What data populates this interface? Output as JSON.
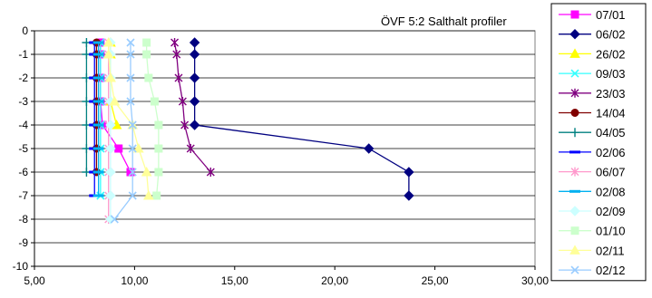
{
  "chart_data": {
    "type": "line",
    "title": "ÖVF 5:2 Salthalt profiler",
    "xlabel": "",
    "ylabel": "",
    "xlim": [
      5,
      30
    ],
    "ylim": [
      -10,
      0
    ],
    "x_ticks": [
      "5,00",
      "10,00",
      "15,00",
      "20,00",
      "25,00",
      "30,00"
    ],
    "y_ticks": [
      "0",
      "-1",
      "-2",
      "-3",
      "-4",
      "-5",
      "-6",
      "-7",
      "-8",
      "-9",
      "-10"
    ],
    "grid": "horizontal",
    "legend_position": "right",
    "series": [
      {
        "name": "07/01",
        "color": "#ff00ff",
        "marker": "square",
        "points": [
          [
            8.3,
            -0.5
          ],
          [
            8.3,
            -1
          ],
          [
            8.3,
            -2
          ],
          [
            8.3,
            -3
          ],
          [
            8.4,
            -4
          ],
          [
            9.2,
            -5
          ],
          [
            9.8,
            -6
          ]
        ]
      },
      {
        "name": "06/02",
        "color": "#000080",
        "marker": "diamond",
        "points": [
          [
            13.0,
            -0.5
          ],
          [
            13.0,
            -1
          ],
          [
            13.0,
            -2
          ],
          [
            13.0,
            -3
          ],
          [
            13.0,
            -4
          ],
          [
            21.7,
            -5
          ],
          [
            23.7,
            -6
          ],
          [
            23.7,
            -7
          ]
        ]
      },
      {
        "name": "26/02",
        "color": "#ffff00",
        "marker": "triangle",
        "points": [
          [
            8.8,
            -0.5
          ],
          [
            8.8,
            -1
          ],
          [
            8.8,
            -2
          ],
          [
            8.8,
            -3
          ],
          [
            9.1,
            -4
          ]
        ]
      },
      {
        "name": "09/03",
        "color": "#33ffff",
        "marker": "x",
        "points": [
          [
            8.3,
            -0.5
          ],
          [
            8.3,
            -1
          ],
          [
            8.3,
            -2
          ],
          [
            8.3,
            -3
          ],
          [
            8.3,
            -4
          ],
          [
            8.3,
            -5
          ],
          [
            8.3,
            -6
          ],
          [
            8.3,
            -7
          ]
        ]
      },
      {
        "name": "23/03",
        "color": "#800080",
        "marker": "star",
        "points": [
          [
            12.0,
            -0.5
          ],
          [
            12.1,
            -1
          ],
          [
            12.2,
            -2
          ],
          [
            12.4,
            -3
          ],
          [
            12.5,
            -4
          ],
          [
            12.8,
            -5
          ],
          [
            13.8,
            -6
          ]
        ]
      },
      {
        "name": "14/04",
        "color": "#800000",
        "marker": "circle",
        "points": [
          [
            8.1,
            -0.5
          ],
          [
            8.1,
            -1
          ],
          [
            8.1,
            -2
          ],
          [
            8.1,
            -3
          ],
          [
            8.1,
            -4
          ],
          [
            8.1,
            -5
          ],
          [
            8.1,
            -6
          ]
        ]
      },
      {
        "name": "04/05",
        "color": "#008080",
        "marker": "plus",
        "points": [
          [
            7.6,
            -0.5
          ],
          [
            7.6,
            -1
          ],
          [
            7.6,
            -2
          ],
          [
            7.6,
            -3
          ],
          [
            7.6,
            -4
          ],
          [
            7.6,
            -5
          ],
          [
            7.6,
            -6
          ]
        ]
      },
      {
        "name": "02/06",
        "color": "#0000ff",
        "marker": "dash",
        "points": [
          [
            8.0,
            -0.5
          ],
          [
            8.0,
            -1
          ],
          [
            8.0,
            -2
          ],
          [
            8.0,
            -3
          ],
          [
            8.0,
            -4
          ],
          [
            8.0,
            -5
          ],
          [
            8.0,
            -6
          ],
          [
            8.0,
            -7
          ]
        ]
      },
      {
        "name": "06/07",
        "color": "#ff99cc",
        "marker": "star",
        "points": [
          [
            8.7,
            -0.5
          ],
          [
            8.7,
            -1
          ],
          [
            8.7,
            -2
          ],
          [
            8.7,
            -3
          ],
          [
            8.7,
            -4
          ],
          [
            8.7,
            -5
          ],
          [
            8.7,
            -6
          ],
          [
            8.7,
            -7
          ],
          [
            8.7,
            -8
          ]
        ]
      },
      {
        "name": "02/08",
        "color": "#00b0f0",
        "marker": "dash",
        "points": [
          [
            8.2,
            -0.5
          ],
          [
            8.2,
            -1
          ],
          [
            8.2,
            -2
          ],
          [
            8.2,
            -3
          ],
          [
            8.2,
            -4
          ],
          [
            8.2,
            -5
          ],
          [
            8.2,
            -6
          ],
          [
            8.2,
            -7
          ]
        ]
      },
      {
        "name": "02/09",
        "color": "#ccffff",
        "marker": "diamond",
        "points": [
          [
            8.8,
            -0.5
          ],
          [
            8.8,
            -1
          ],
          [
            8.8,
            -2
          ],
          [
            8.8,
            -3
          ],
          [
            8.8,
            -4
          ],
          [
            8.8,
            -5
          ],
          [
            8.8,
            -6
          ],
          [
            8.8,
            -7
          ],
          [
            8.8,
            -8
          ]
        ]
      },
      {
        "name": "01/10",
        "color": "#ccffcc",
        "marker": "square",
        "points": [
          [
            10.6,
            -0.5
          ],
          [
            10.6,
            -1
          ],
          [
            10.7,
            -2
          ],
          [
            11.0,
            -3
          ],
          [
            11.2,
            -4
          ],
          [
            11.2,
            -5
          ],
          [
            11.2,
            -6
          ],
          [
            11.1,
            -7
          ]
        ]
      },
      {
        "name": "02/11",
        "color": "#ffff99",
        "marker": "triangle",
        "points": [
          [
            8.7,
            -0.5
          ],
          [
            8.7,
            -1
          ],
          [
            8.8,
            -2
          ],
          [
            9.0,
            -3
          ],
          [
            9.9,
            -4
          ],
          [
            10.2,
            -5
          ],
          [
            10.6,
            -6
          ],
          [
            10.7,
            -7
          ]
        ]
      },
      {
        "name": "02/12",
        "color": "#99ccff",
        "marker": "x",
        "points": [
          [
            9.8,
            -0.5
          ],
          [
            9.8,
            -1
          ],
          [
            9.8,
            -2
          ],
          [
            9.8,
            -3
          ],
          [
            9.9,
            -4
          ],
          [
            9.9,
            -5
          ],
          [
            9.9,
            -6
          ],
          [
            9.9,
            -7
          ],
          [
            9.0,
            -8
          ]
        ]
      }
    ]
  }
}
